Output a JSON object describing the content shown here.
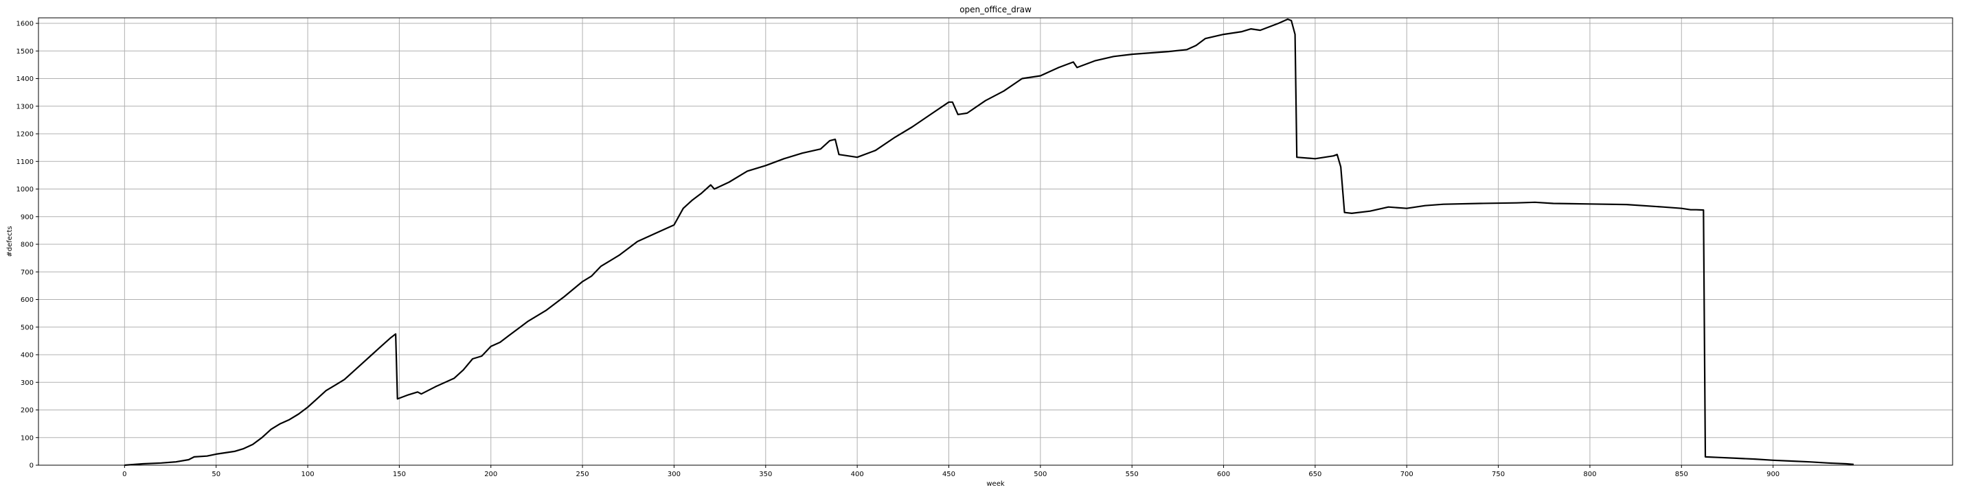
{
  "chart_data": {
    "type": "line",
    "title": "open_office_draw",
    "xlabel": "week",
    "ylabel": "#defects",
    "xlim": [
      -47,
      998
    ],
    "ylim": [
      0,
      1620
    ],
    "grid": true,
    "x_ticks": [
      0,
      50,
      100,
      150,
      200,
      250,
      300,
      350,
      400,
      450,
      500,
      550,
      600,
      650,
      700,
      750,
      800,
      850,
      900
    ],
    "y_ticks": [
      0,
      100,
      200,
      300,
      400,
      500,
      600,
      700,
      800,
      900,
      1000,
      1100,
      1200,
      1300,
      1400,
      1500,
      1600
    ],
    "series": [
      {
        "color": "#000000",
        "x": [
          0,
          10,
          20,
          28,
          35,
          38,
          45,
          50,
          60,
          65,
          70,
          75,
          80,
          85,
          90,
          95,
          100,
          105,
          110,
          115,
          120,
          125,
          130,
          135,
          140,
          145,
          148,
          149,
          155,
          160,
          162,
          170,
          180,
          185,
          190,
          195,
          200,
          205,
          210,
          215,
          220,
          230,
          240,
          250,
          255,
          260,
          270,
          280,
          290,
          300,
          305,
          310,
          315,
          320,
          322,
          330,
          340,
          350,
          360,
          370,
          380,
          385,
          388,
          390,
          395,
          400,
          410,
          420,
          430,
          440,
          450,
          452,
          455,
          460,
          470,
          480,
          490,
          500,
          510,
          518,
          520,
          530,
          540,
          550,
          560,
          570,
          580,
          585,
          590,
          600,
          610,
          615,
          620,
          630,
          635,
          637,
          639,
          640,
          650,
          660,
          662,
          664,
          666,
          670,
          680,
          690,
          700,
          710,
          720,
          740,
          760,
          770,
          780,
          800,
          820,
          840,
          850,
          855,
          858,
          862,
          863,
          870,
          880,
          890,
          900,
          910,
          920,
          930,
          940,
          944
        ],
        "values": [
          0,
          5,
          8,
          12,
          20,
          30,
          33,
          40,
          50,
          60,
          75,
          100,
          130,
          150,
          165,
          185,
          210,
          240,
          270,
          290,
          310,
          340,
          370,
          400,
          430,
          460,
          475,
          240,
          255,
          265,
          258,
          285,
          315,
          345,
          385,
          395,
          430,
          445,
          470,
          495,
          520,
          560,
          610,
          665,
          685,
          720,
          760,
          810,
          840,
          870,
          930,
          960,
          985,
          1015,
          1000,
          1025,
          1065,
          1085,
          1110,
          1130,
          1145,
          1175,
          1180,
          1125,
          1120,
          1115,
          1140,
          1185,
          1225,
          1270,
          1315,
          1315,
          1270,
          1275,
          1320,
          1355,
          1400,
          1410,
          1440,
          1460,
          1440,
          1465,
          1480,
          1488,
          1493,
          1498,
          1505,
          1520,
          1545,
          1560,
          1570,
          1580,
          1575,
          1600,
          1615,
          1610,
          1560,
          1115,
          1110,
          1120,
          1125,
          1080,
          915,
          912,
          920,
          935,
          930,
          940,
          945,
          948,
          950,
          952,
          948,
          946,
          944,
          935,
          930,
          925,
          925,
          924,
          30,
          28,
          25,
          22,
          18,
          15,
          12,
          8,
          5,
          3
        ]
      }
    ]
  }
}
